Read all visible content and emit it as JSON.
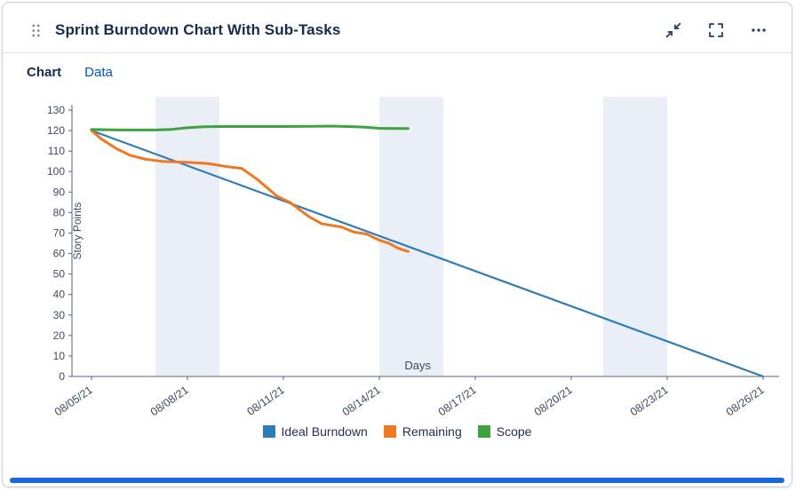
{
  "card": {
    "title": "Sprint Burndown Chart With Sub-Tasks"
  },
  "tabs": [
    {
      "label": "Chart",
      "active": true
    },
    {
      "label": "Data",
      "active": false
    }
  ],
  "header_icons": [
    "drag-handle",
    "minimize-arrows",
    "fullscreen-corners",
    "ellipsis-menu"
  ],
  "colors": {
    "title_text": "#172B4D",
    "link_blue": "#0052CC",
    "icon": "#344563",
    "bottom_bar": "#1868DB",
    "axis": "#5A6477",
    "tick_text": "#3E4A61"
  },
  "chart_data": {
    "type": "line",
    "title": "",
    "xlabel": "Days",
    "ylabel": "Story Points",
    "ylim": [
      0,
      130
    ],
    "y_tick_step": 10,
    "x_ticks": [
      {
        "day": 0,
        "label": "08/05/21"
      },
      {
        "day": 3,
        "label": "08/08/21"
      },
      {
        "day": 6,
        "label": "08/11/21"
      },
      {
        "day": 9,
        "label": "08/14/21"
      },
      {
        "day": 12,
        "label": "08/17/21"
      },
      {
        "day": 15,
        "label": "08/20/21"
      },
      {
        "day": 18,
        "label": "08/23/21"
      },
      {
        "day": 21,
        "label": "08/26/21"
      }
    ],
    "weekend_bands": [
      [
        2,
        4
      ],
      [
        9,
        11
      ],
      [
        16,
        18
      ]
    ],
    "band_color": "#E9EEF7",
    "grid": false,
    "legend_position": "bottom",
    "series": [
      {
        "name": "Ideal Burndown",
        "color": "#2E7CB8",
        "width": 2.2,
        "points": [
          [
            0,
            120
          ],
          [
            21,
            0
          ]
        ]
      },
      {
        "name": "Remaining",
        "color": "#F07821",
        "width": 3,
        "points": [
          [
            0,
            120
          ],
          [
            0.3,
            116
          ],
          [
            0.8,
            111
          ],
          [
            1.2,
            108
          ],
          [
            1.7,
            106
          ],
          [
            2.2,
            105
          ],
          [
            3,
            104.5
          ],
          [
            3.6,
            104
          ],
          [
            4.2,
            102.5
          ],
          [
            4.7,
            101.5
          ],
          [
            5.2,
            96
          ],
          [
            5.8,
            88
          ],
          [
            6.2,
            85
          ],
          [
            6.8,
            78
          ],
          [
            7.2,
            74.5
          ],
          [
            7.8,
            73
          ],
          [
            8.2,
            70.5
          ],
          [
            8.6,
            69.5
          ],
          [
            9,
            66.5
          ],
          [
            9.3,
            65
          ],
          [
            9.6,
            62.5
          ],
          [
            9.9,
            61
          ]
        ]
      },
      {
        "name": "Scope",
        "color": "#3EA23E",
        "width": 3,
        "points": [
          [
            0,
            120.5
          ],
          [
            1,
            120.3
          ],
          [
            2,
            120.3
          ],
          [
            2.5,
            120.6
          ],
          [
            3,
            121.4
          ],
          [
            3.5,
            121.9
          ],
          [
            4,
            122
          ],
          [
            5,
            122
          ],
          [
            6,
            122
          ],
          [
            7,
            122.1
          ],
          [
            7.5,
            122.2
          ],
          [
            8,
            122
          ],
          [
            8.5,
            121.7
          ],
          [
            9,
            121.1
          ],
          [
            9.5,
            121
          ],
          [
            9.9,
            121
          ]
        ]
      }
    ]
  }
}
